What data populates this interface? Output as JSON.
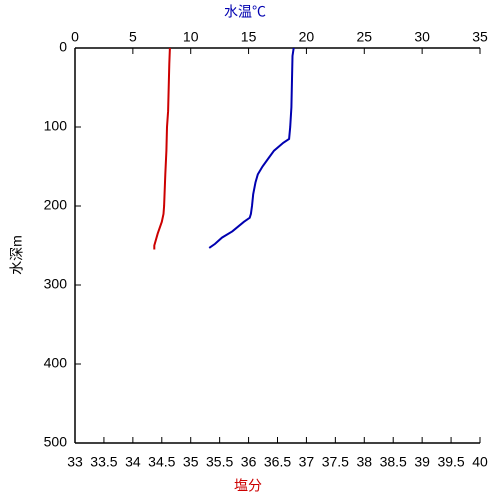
{
  "chart_data": {
    "type": "profile",
    "x_label": "塩分",
    "x2_label": "水温℃",
    "y_label": "水深m",
    "xlim": [
      33,
      40
    ],
    "xticks": [
      33,
      33.5,
      34,
      34.5,
      35,
      35.5,
      36,
      36.5,
      37,
      37.5,
      38,
      38.5,
      39,
      39.5,
      40
    ],
    "x2lim": [
      0,
      35
    ],
    "x2ticks": [
      0,
      5,
      10,
      15,
      20,
      25,
      30,
      35
    ],
    "ylim": [
      0,
      500
    ],
    "yticks": [
      0,
      100,
      200,
      300,
      400,
      500
    ],
    "y_inverted": true,
    "series": [
      {
        "name": "水温℃",
        "color": "#0000b0",
        "axis": "x2",
        "values": [
          18.9,
          18.8,
          18.7,
          18.6,
          18.5,
          18.0,
          17.2,
          16.7,
          16.2,
          15.8,
          15.6,
          15.4,
          15.3,
          15.2,
          15.1,
          14.6,
          13.6,
          12.7,
          12.1,
          11.6
        ],
        "depth": [
          0,
          10,
          75,
          100,
          115,
          120,
          130,
          140,
          150,
          160,
          170,
          185,
          200,
          210,
          215,
          220,
          232,
          240,
          248,
          253
        ]
      },
      {
        "name": "塩分",
        "color": "#cc0000",
        "axis": "x",
        "values": [
          34.64,
          34.63,
          34.62,
          34.61,
          34.59,
          34.58,
          34.56,
          34.55,
          34.54,
          34.53,
          34.5,
          34.43,
          34.37,
          34.37
        ],
        "depth": [
          0,
          20,
          50,
          80,
          100,
          130,
          160,
          180,
          200,
          210,
          220,
          235,
          250,
          255
        ]
      }
    ]
  }
}
